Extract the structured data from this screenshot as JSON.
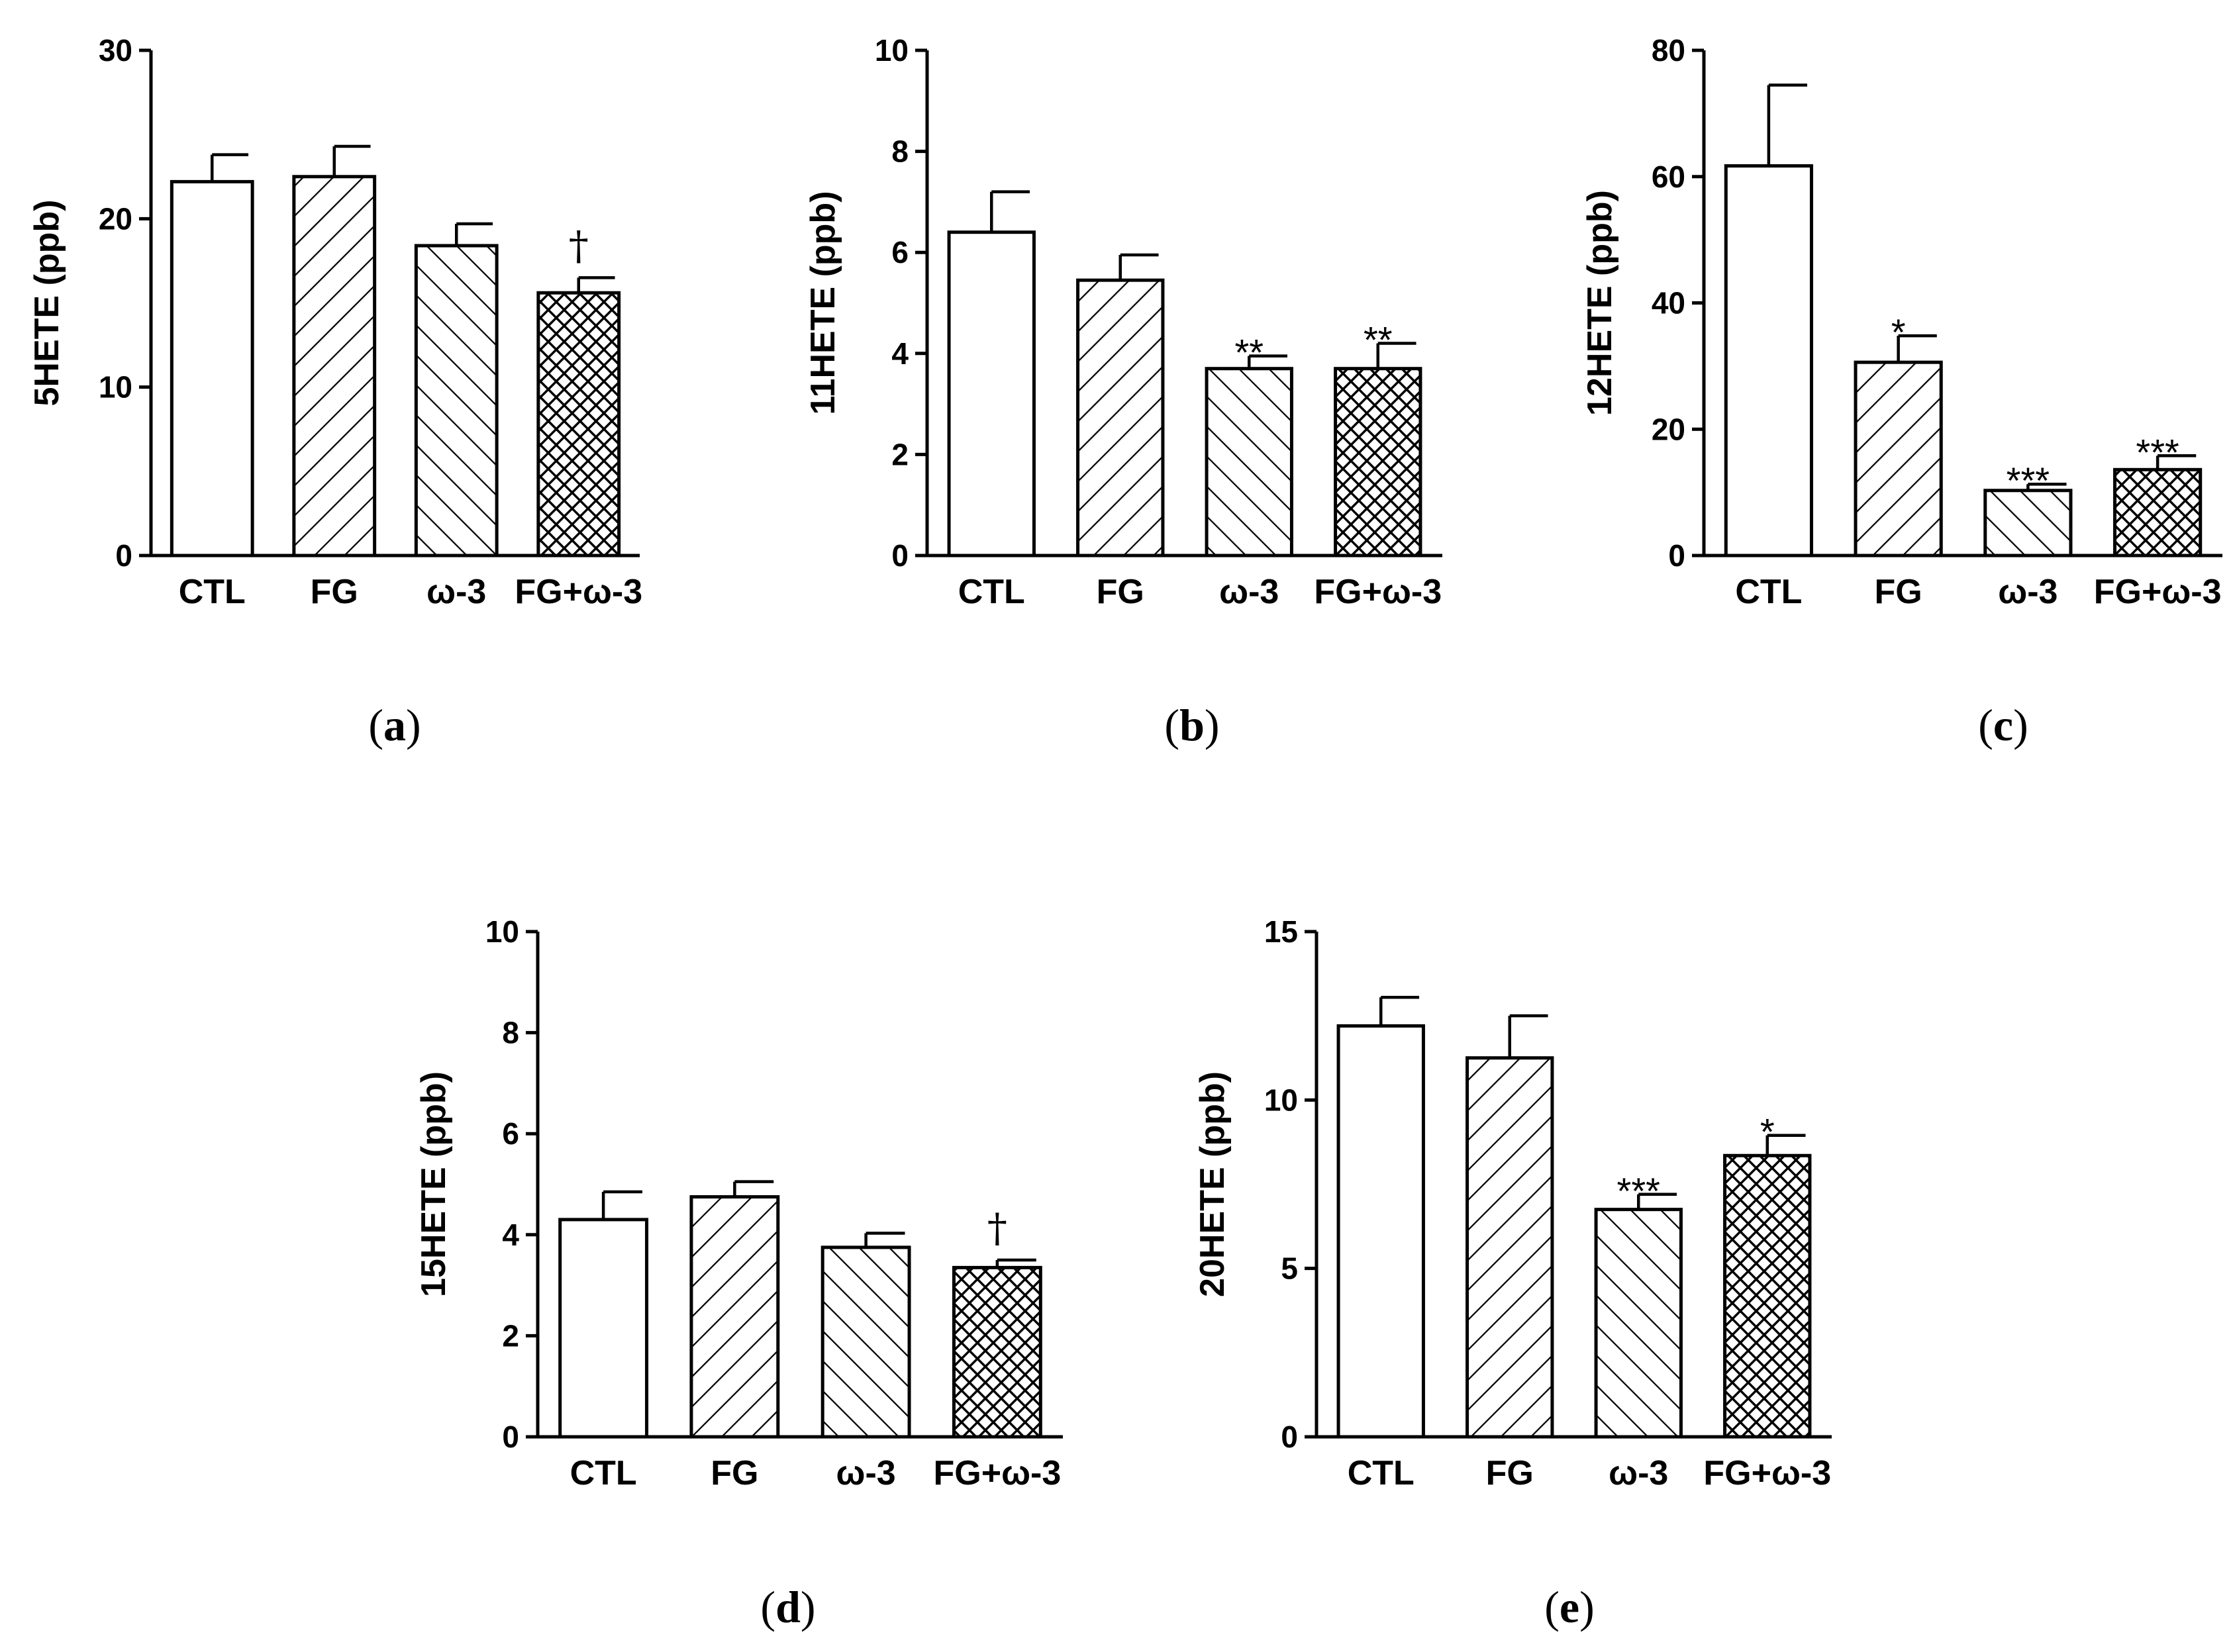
{
  "figure": {
    "colors": {
      "ink": "#000000",
      "bar_fill": "#ffffff"
    },
    "patterns": [
      "open",
      "diag-right",
      "diag-left",
      "cross-hatch"
    ]
  },
  "chart_data": [
    {
      "panel": "a",
      "type": "bar",
      "ylabel": "5HETE (ppb)",
      "categories": [
        "CTL",
        "FG",
        "ω-3",
        "FG+ω-3"
      ],
      "values": [
        22.2,
        22.5,
        18.4,
        15.6
      ],
      "errors": [
        1.6,
        1.8,
        1.3,
        0.9
      ],
      "significance": [
        "",
        "",
        "",
        "†"
      ],
      "ylim": [
        0,
        30
      ],
      "yticks": [
        0,
        10,
        20,
        30
      ]
    },
    {
      "panel": "b",
      "type": "bar",
      "ylabel": "11HETE (ppb)",
      "categories": [
        "CTL",
        "FG",
        "ω-3",
        "FG+ω-3"
      ],
      "values": [
        6.4,
        5.45,
        3.7,
        3.7
      ],
      "errors": [
        0.8,
        0.5,
        0.25,
        0.5
      ],
      "significance": [
        "",
        "",
        "**",
        "**"
      ],
      "ylim": [
        0,
        10
      ],
      "yticks": [
        0,
        2,
        4,
        6,
        8,
        10
      ]
    },
    {
      "panel": "c",
      "type": "bar",
      "ylabel": "12HETE (ppb)",
      "categories": [
        "CTL",
        "FG",
        "ω-3",
        "FG+ω-3"
      ],
      "values": [
        61.7,
        30.6,
        10.3,
        13.6
      ],
      "errors": [
        12.8,
        4.2,
        1.0,
        2.2
      ],
      "significance": [
        "",
        "*",
        "***",
        "***"
      ],
      "ylim": [
        0,
        80
      ],
      "yticks": [
        0,
        20,
        40,
        60,
        80
      ]
    },
    {
      "panel": "d",
      "type": "bar",
      "ylabel": "15HETE (ppb)",
      "categories": [
        "CTL",
        "FG",
        "ω-3",
        "FG+ω-3"
      ],
      "values": [
        4.3,
        4.75,
        3.75,
        3.35
      ],
      "errors": [
        0.55,
        0.3,
        0.28,
        0.15
      ],
      "significance": [
        "",
        "",
        "",
        "†"
      ],
      "ylim": [
        0,
        10
      ],
      "yticks": [
        0,
        2,
        4,
        6,
        8,
        10
      ]
    },
    {
      "panel": "e",
      "type": "bar",
      "ylabel": "20HETE (ppb)",
      "categories": [
        "CTL",
        "FG",
        "ω-3",
        "FG+ω-3"
      ],
      "values": [
        12.2,
        11.25,
        6.75,
        8.35
      ],
      "errors": [
        0.85,
        1.25,
        0.45,
        0.6
      ],
      "significance": [
        "",
        "",
        "***",
        "*"
      ],
      "ylim": [
        0,
        15
      ],
      "yticks": [
        0,
        5,
        10,
        15
      ]
    }
  ],
  "captions": [
    {
      "open": "(",
      "letter": "a",
      "close": ")"
    },
    {
      "open": "(",
      "letter": "b",
      "close": ")"
    },
    {
      "open": "(",
      "letter": "c",
      "close": ")"
    },
    {
      "open": "(",
      "letter": "d",
      "close": ")"
    },
    {
      "open": "(",
      "letter": "e",
      "close": ")"
    }
  ]
}
